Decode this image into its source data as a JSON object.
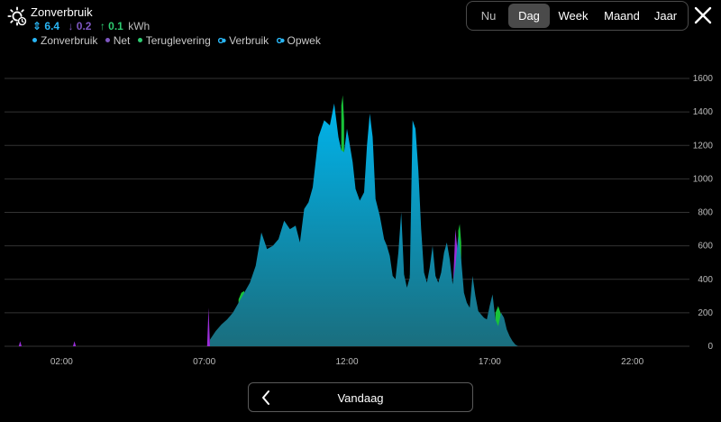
{
  "header": {
    "icon": "sun-clock-icon",
    "title": "Zonverbruik",
    "totals": {
      "solar": {
        "arrow": "⇕",
        "value": "6.4"
      },
      "net": {
        "arrow": "↓",
        "value": "0.2"
      },
      "return": {
        "arrow": "↑",
        "value": "0.1"
      },
      "unit": "kWh"
    },
    "legend": [
      {
        "label": "Zonverbruik",
        "color": "#29b6f6",
        "marker": "dot"
      },
      {
        "label": "Net",
        "color": "#7e57c2",
        "marker": "dot"
      },
      {
        "label": "Teruglevering",
        "color": "#2ecc71",
        "marker": "dot"
      },
      {
        "label": "Verbruik",
        "color": "#29b6f6",
        "marker": "ring"
      },
      {
        "label": "Opwek",
        "color": "#29b6f6",
        "marker": "ring"
      }
    ]
  },
  "period_switch": {
    "options": [
      "Nu",
      "Dag",
      "Week",
      "Maand",
      "Jaar"
    ],
    "selected": "Dag"
  },
  "close_icon": "close-icon",
  "navigation": {
    "prev_icon": "chevron-left-icon",
    "label": "Vandaag"
  },
  "chart_data": {
    "type": "area",
    "title": "",
    "xlabel": "",
    "ylabel": "",
    "xlim": [
      0,
      24
    ],
    "ylim": [
      0,
      1600
    ],
    "x_ticks": [
      {
        "hour": 2,
        "label": "02:00"
      },
      {
        "hour": 7,
        "label": "07:00"
      },
      {
        "hour": 12,
        "label": "12:00"
      },
      {
        "hour": 17,
        "label": "17:00"
      },
      {
        "hour": 22,
        "label": "22:00"
      }
    ],
    "y_ticks": [
      0,
      200,
      400,
      600,
      800,
      1000,
      1200,
      1400,
      1600
    ],
    "grid": true,
    "colors": {
      "zonverbruik_top": "#00b4ec",
      "zonverbruik_bottom": "#1a6e7e",
      "net": "#9a2ed9",
      "teruglevering": "#19c339",
      "grid": "#333333",
      "axis_text": "#bbbbbb"
    },
    "series": [
      {
        "name": "Zonverbruik",
        "x": [
          7.2,
          7.4,
          7.6,
          7.8,
          8.0,
          8.2,
          8.4,
          8.6,
          8.8,
          9.0,
          9.2,
          9.4,
          9.6,
          9.8,
          10.0,
          10.2,
          10.35,
          10.5,
          10.65,
          10.8,
          11.0,
          11.2,
          11.4,
          11.55,
          11.7,
          11.8,
          11.9,
          12.0,
          12.1,
          12.2,
          12.3,
          12.45,
          12.6,
          12.7,
          12.8,
          12.9,
          13.0,
          13.15,
          13.3,
          13.4,
          13.5,
          13.6,
          13.7,
          13.8,
          13.9,
          14.0,
          14.1,
          14.2,
          14.3,
          14.4,
          14.5,
          14.6,
          14.7,
          14.8,
          14.9,
          15.0,
          15.1,
          15.2,
          15.3,
          15.4,
          15.5,
          15.6,
          15.7,
          15.8,
          15.9,
          16.0,
          16.1,
          16.2,
          16.3,
          16.4,
          16.5,
          16.6,
          16.7,
          16.8,
          16.9,
          17.0,
          17.1,
          17.2,
          17.3,
          17.4,
          17.5,
          17.6,
          17.7,
          17.8,
          17.9,
          18.0,
          18.1
        ],
        "values": [
          40,
          90,
          130,
          160,
          200,
          260,
          320,
          380,
          480,
          680,
          580,
          600,
          640,
          750,
          700,
          720,
          620,
          820,
          860,
          950,
          1250,
          1350,
          1320,
          1450,
          1250,
          1170,
          1160,
          1300,
          1200,
          1100,
          940,
          870,
          920,
          1200,
          1390,
          1250,
          880,
          780,
          640,
          600,
          540,
          420,
          400,
          560,
          800,
          430,
          350,
          410,
          1350,
          1300,
          1050,
          700,
          440,
          380,
          470,
          600,
          420,
          380,
          440,
          560,
          620,
          520,
          370,
          480,
          660,
          520,
          320,
          260,
          230,
          420,
          300,
          210,
          190,
          170,
          160,
          240,
          310,
          160,
          120,
          200,
          170,
          100,
          60,
          30,
          10,
          0,
          0
        ]
      },
      {
        "name": "Net",
        "x": [
          0.5,
          0.55,
          0.6,
          2.4,
          2.45,
          2.5,
          7.1,
          7.15,
          7.2,
          13.9,
          13.95,
          14.0,
          15.7,
          15.8,
          15.9,
          16.0,
          16.05
        ],
        "values": [
          0,
          30,
          0,
          0,
          30,
          0,
          0,
          230,
          0,
          0,
          90,
          0,
          300,
          700,
          520,
          300,
          200
        ]
      },
      {
        "name": "Teruglevering",
        "x": [
          8.2,
          8.3,
          8.4,
          11.8,
          11.85,
          11.9,
          14.2,
          14.25,
          14.3,
          15.9,
          15.95,
          16.0,
          17.2,
          17.3,
          17.4
        ],
        "values": [
          280,
          320,
          330,
          1440,
          1500,
          1350,
          420,
          460,
          400,
          690,
          730,
          620,
          200,
          240,
          190
        ]
      }
    ]
  }
}
